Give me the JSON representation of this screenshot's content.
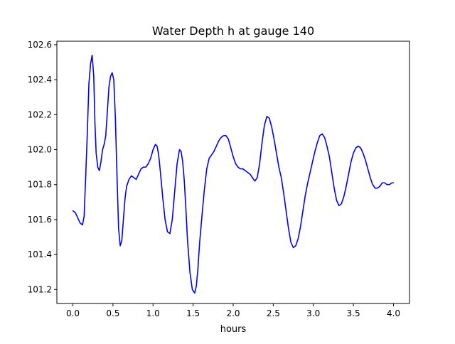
{
  "chart_data": {
    "type": "line",
    "title": "Water Depth h at gauge 140",
    "xlabel": "hours",
    "ylabel": "",
    "xlim": [
      -0.2,
      4.2
    ],
    "ylim": [
      101.12,
      102.62
    ],
    "grid": false,
    "xticks": [
      {
        "value": 0.0,
        "label": "0.0"
      },
      {
        "value": 0.5,
        "label": "0.5"
      },
      {
        "value": 1.0,
        "label": "1.0"
      },
      {
        "value": 1.5,
        "label": "1.5"
      },
      {
        "value": 2.0,
        "label": "2.0"
      },
      {
        "value": 2.5,
        "label": "2.5"
      },
      {
        "value": 3.0,
        "label": "3.0"
      },
      {
        "value": 3.5,
        "label": "3.5"
      },
      {
        "value": 4.0,
        "label": "4.0"
      }
    ],
    "yticks": [
      {
        "value": 101.2,
        "label": "101.2"
      },
      {
        "value": 101.4,
        "label": "101.4"
      },
      {
        "value": 101.6,
        "label": "101.6"
      },
      {
        "value": 101.8,
        "label": "101.8"
      },
      {
        "value": 102.0,
        "label": "102.0"
      },
      {
        "value": 102.2,
        "label": "102.2"
      },
      {
        "value": 102.4,
        "label": "102.4"
      },
      {
        "value": 102.6,
        "label": "102.6"
      }
    ],
    "series": [
      {
        "color": "#0000ff",
        "x": [
          0.0,
          0.03,
          0.06,
          0.09,
          0.12,
          0.14,
          0.16,
          0.18,
          0.2,
          0.22,
          0.24,
          0.26,
          0.275,
          0.29,
          0.31,
          0.33,
          0.35,
          0.37,
          0.39,
          0.41,
          0.43,
          0.45,
          0.47,
          0.49,
          0.51,
          0.53,
          0.55,
          0.57,
          0.59,
          0.61,
          0.63,
          0.65,
          0.67,
          0.7,
          0.73,
          0.76,
          0.79,
          0.82,
          0.85,
          0.88,
          0.91,
          0.94,
          0.97,
          1.0,
          1.03,
          1.05,
          1.07,
          1.09,
          1.12,
          1.15,
          1.18,
          1.21,
          1.24,
          1.27,
          1.3,
          1.33,
          1.35,
          1.37,
          1.39,
          1.41,
          1.43,
          1.46,
          1.49,
          1.52,
          1.54,
          1.56,
          1.58,
          1.61,
          1.64,
          1.67,
          1.7,
          1.73,
          1.76,
          1.79,
          1.82,
          1.85,
          1.88,
          1.91,
          1.94,
          1.97,
          2.0,
          2.03,
          2.06,
          2.09,
          2.12,
          2.15,
          2.18,
          2.21,
          2.24,
          2.27,
          2.3,
          2.33,
          2.36,
          2.39,
          2.42,
          2.45,
          2.48,
          2.51,
          2.54,
          2.57,
          2.6,
          2.63,
          2.66,
          2.69,
          2.72,
          2.75,
          2.78,
          2.81,
          2.84,
          2.87,
          2.9,
          2.93,
          2.96,
          2.99,
          3.02,
          3.05,
          3.08,
          3.11,
          3.14,
          3.17,
          3.2,
          3.23,
          3.26,
          3.29,
          3.32,
          3.35,
          3.38,
          3.41,
          3.44,
          3.47,
          3.5,
          3.53,
          3.56,
          3.59,
          3.62,
          3.65,
          3.68,
          3.71,
          3.74,
          3.77,
          3.8,
          3.83,
          3.86,
          3.89,
          3.92,
          3.95,
          3.98,
          4.0
        ],
        "y": [
          101.65,
          101.64,
          101.61,
          101.58,
          101.57,
          101.62,
          101.85,
          102.1,
          102.38,
          102.49,
          102.54,
          102.42,
          102.15,
          101.98,
          101.9,
          101.88,
          101.93,
          102.0,
          102.03,
          102.08,
          102.22,
          102.36,
          102.42,
          102.44,
          102.4,
          102.18,
          101.85,
          101.55,
          101.45,
          101.48,
          101.6,
          101.72,
          101.79,
          101.83,
          101.85,
          101.84,
          101.83,
          101.86,
          101.89,
          101.9,
          101.9,
          101.92,
          101.95,
          102.0,
          102.03,
          102.02,
          101.97,
          101.88,
          101.73,
          101.6,
          101.53,
          101.52,
          101.6,
          101.76,
          101.92,
          102.0,
          101.99,
          101.93,
          101.82,
          101.66,
          101.48,
          101.3,
          101.2,
          101.18,
          101.22,
          101.32,
          101.46,
          101.62,
          101.77,
          101.89,
          101.95,
          101.97,
          101.99,
          102.02,
          102.05,
          102.07,
          102.08,
          102.08,
          102.06,
          102.01,
          101.96,
          101.92,
          101.9,
          101.89,
          101.89,
          101.88,
          101.87,
          101.86,
          101.84,
          101.82,
          101.84,
          101.92,
          102.04,
          102.14,
          102.19,
          102.18,
          102.13,
          102.06,
          101.98,
          101.9,
          101.84,
          101.75,
          101.65,
          101.55,
          101.47,
          101.44,
          101.45,
          101.49,
          101.56,
          101.65,
          101.74,
          101.81,
          101.87,
          101.93,
          101.99,
          102.04,
          102.08,
          102.09,
          102.07,
          102.02,
          101.96,
          101.87,
          101.78,
          101.71,
          101.68,
          101.69,
          101.73,
          101.79,
          101.86,
          101.93,
          101.98,
          102.01,
          102.02,
          102.01,
          101.98,
          101.94,
          101.89,
          101.84,
          101.8,
          101.78,
          101.78,
          101.79,
          101.81,
          101.81,
          101.8,
          101.8,
          101.81,
          101.81
        ]
      }
    ]
  }
}
